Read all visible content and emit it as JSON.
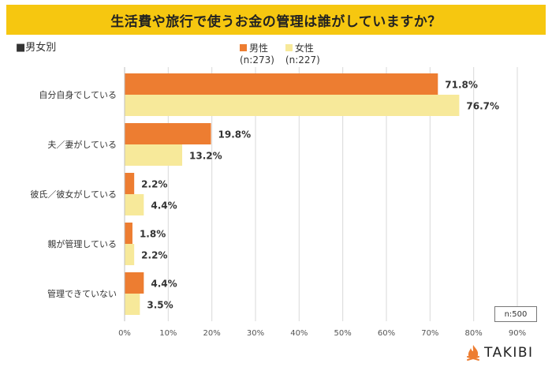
{
  "title": "生活費や旅行で使うお金の管理は誰がしていますか？",
  "subtitle": "■男女別",
  "legend": {
    "male": {
      "name": "男性",
      "n": "(n:273)"
    },
    "female": {
      "name": "女性",
      "n": "(n:227)"
    }
  },
  "n_total": "n:500",
  "brand": "TAKIBI",
  "colors": {
    "male": "#ed7d31",
    "female": "#f7e99a",
    "title_bg": "#f6c710",
    "logo": "#ed7d31"
  },
  "chart_data": {
    "type": "bar",
    "orientation": "horizontal",
    "categories": [
      "自分自身でしている",
      "夫／妻がしている",
      "彼氏／彼女がしている",
      "親が管理している",
      "管理できていない"
    ],
    "series": [
      {
        "name": "男性",
        "values": [
          71.8,
          19.8,
          2.2,
          1.8,
          4.4
        ],
        "labels": [
          "71.8%",
          "19.8%",
          "2.2%",
          "1.8%",
          "4.4%"
        ]
      },
      {
        "name": "女性",
        "values": [
          76.7,
          13.2,
          4.4,
          2.2,
          3.5
        ],
        "labels": [
          "76.7%",
          "13.2%",
          "4.4%",
          "2.2%",
          "3.5%"
        ]
      }
    ],
    "xlim": [
      0,
      90
    ],
    "xticks": [
      0,
      10,
      20,
      30,
      40,
      50,
      60,
      70,
      80,
      90
    ],
    "xtick_labels": [
      "0%",
      "10%",
      "20%",
      "30%",
      "40%",
      "50%",
      "60%",
      "70%",
      "80%",
      "90%"
    ],
    "grid": true
  }
}
